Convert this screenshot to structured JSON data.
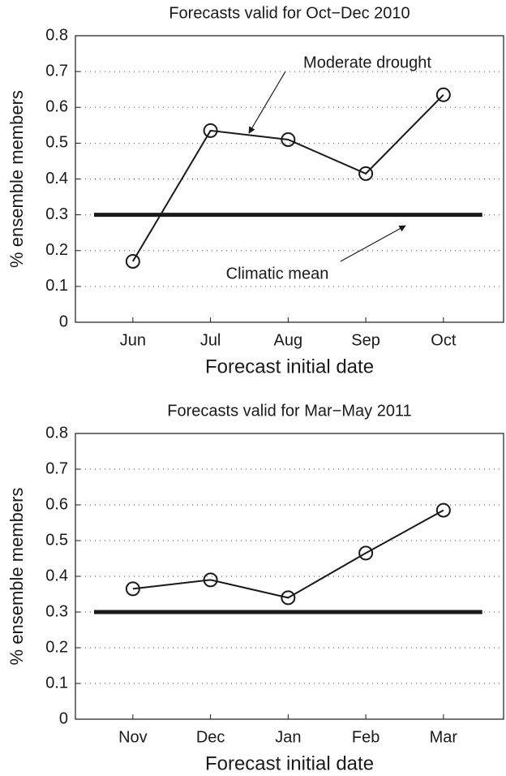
{
  "chart_data": [
    {
      "type": "line",
      "title": "Forecasts valid for Oct−Dec 2010",
      "categories": [
        "Jun",
        "Jul",
        "Aug",
        "Sep",
        "Oct"
      ],
      "values": [
        0.17,
        0.535,
        0.51,
        0.415,
        0.635
      ],
      "color": "#1a1a1a",
      "hline": 0.3,
      "xlabel": "Forecast initial date",
      "ylabel": "% ensemble members",
      "ylim": [
        0,
        0.8
      ],
      "yticks": [
        0,
        0.1,
        0.2,
        0.3,
        0.4,
        0.5,
        0.6,
        0.7,
        0.8
      ],
      "grid": true,
      "annotations": [
        "Moderate drought",
        "Climatic mean"
      ]
    },
    {
      "type": "line",
      "title": "Forecasts valid for Mar−May 2011",
      "categories": [
        "Nov",
        "Dec",
        "Jan",
        "Feb",
        "Mar"
      ],
      "values": [
        0.365,
        0.39,
        0.34,
        0.465,
        0.585
      ],
      "color": "#1a1a1a",
      "hline": 0.3,
      "xlabel": "Forecast initial date",
      "ylabel": "% ensemble members",
      "ylim": [
        0,
        0.8
      ],
      "yticks": [
        0,
        0.1,
        0.2,
        0.3,
        0.4,
        0.5,
        0.6,
        0.7,
        0.8
      ],
      "grid": true
    }
  ]
}
